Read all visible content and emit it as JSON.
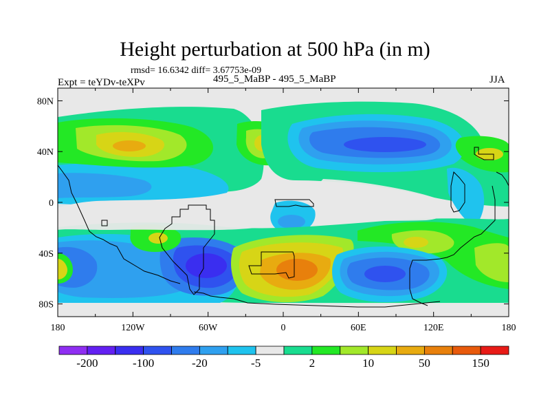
{
  "chart_data": {
    "type": "heatmap",
    "title": "Height perturbation at 500 hPa (in m)",
    "stats_text": "rmsd= 16.6342 diff= 3.67753e-09",
    "left_label": "Expt = teYDv-teXPv",
    "center_label": "495_5_MaBP - 495_5_MaBP",
    "right_label": "JJA",
    "x_range": [
      -180,
      180
    ],
    "y_range": [
      -90,
      90
    ],
    "x_ticks": [
      {
        "value": -180,
        "label": "180"
      },
      {
        "value": -120,
        "label": "120W"
      },
      {
        "value": -60,
        "label": "60W"
      },
      {
        "value": 0,
        "label": "0"
      },
      {
        "value": 60,
        "label": "60E"
      },
      {
        "value": 120,
        "label": "120E"
      },
      {
        "value": 180,
        "label": "180"
      }
    ],
    "y_ticks": [
      {
        "value": 80,
        "label": "80N"
      },
      {
        "value": 40,
        "label": "40N"
      },
      {
        "value": 0,
        "label": "0"
      },
      {
        "value": -40,
        "label": "40S"
      },
      {
        "value": -80,
        "label": "80S"
      }
    ],
    "colorbar": {
      "colors": [
        "#8f2ef2",
        "#6320f2",
        "#3a2ef0",
        "#2f52ef",
        "#2f7ced",
        "#2fa0ef",
        "#1fc3ee",
        "#e8e8e8",
        "#19dc8f",
        "#23e825",
        "#a2e82a",
        "#d7d516",
        "#e8ab10",
        "#e8800c",
        "#e85a0c",
        "#e81b17"
      ],
      "labels": [
        "-200",
        "-100",
        "-20",
        "-5",
        "2",
        "10",
        "50",
        "150"
      ]
    },
    "features": [
      {
        "kind": "high",
        "lon": -165,
        "lat": 40,
        "level": 3
      },
      {
        "kind": "high",
        "lon": -135,
        "lat": 42,
        "level": 4
      },
      {
        "kind": "high",
        "lon": -45,
        "lat": 42,
        "level": 4
      },
      {
        "kind": "low",
        "lon": 50,
        "lat": 40,
        "level": -4
      },
      {
        "kind": "high",
        "lon": -10,
        "lat": -45,
        "level": 5
      },
      {
        "kind": "low",
        "lon": -60,
        "lat": -45,
        "level": -4
      },
      {
        "kind": "low",
        "lon": 75,
        "lat": -55,
        "level": -4
      },
      {
        "kind": "low",
        "lon": -170,
        "lat": -45,
        "level": -3
      },
      {
        "kind": "high",
        "lon": 110,
        "lat": -30,
        "level": 3
      },
      {
        "kind": "high",
        "lon": 170,
        "lat": -50,
        "level": 3
      }
    ]
  }
}
